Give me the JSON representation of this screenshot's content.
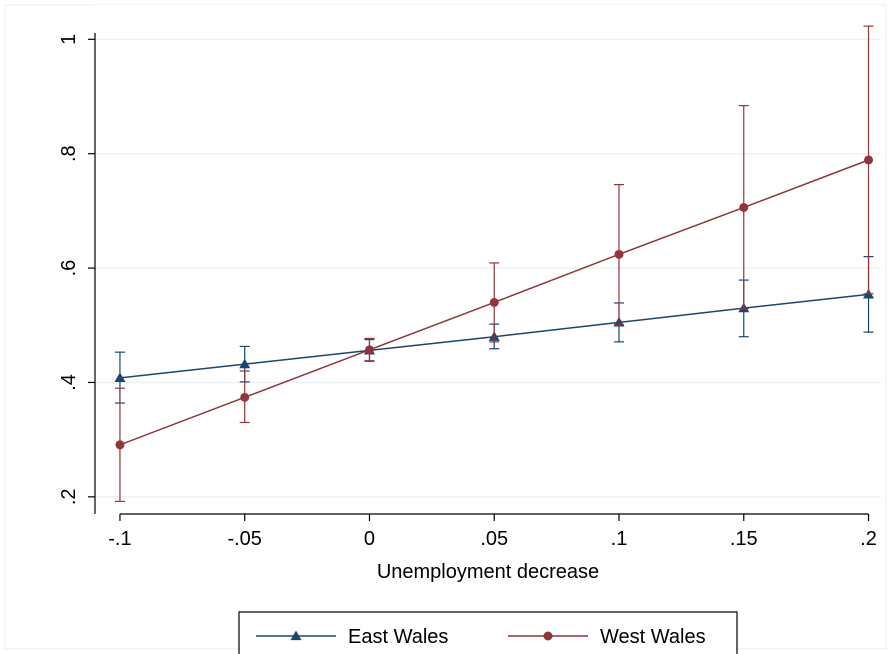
{
  "chart_data": {
    "type": "line",
    "title": "",
    "xlabel": "Unemployment decrease",
    "ylabel": "",
    "x": [
      -0.1,
      -0.05,
      0,
      0.05,
      0.1,
      0.15,
      0.2
    ],
    "x_tick_values": [
      -0.1,
      -0.05,
      0,
      0.05,
      0.1,
      0.15,
      0.2
    ],
    "x_tick_labels": [
      "-.1",
      "-.05",
      "0",
      ".05",
      ".1",
      ".15",
      ".2"
    ],
    "y_tick_values": [
      0.2,
      0.4,
      0.6,
      0.8,
      1.0
    ],
    "y_tick_labels": [
      ".2",
      ".4",
      ".6",
      ".8",
      "1"
    ],
    "xlim": [
      -0.11,
      0.205
    ],
    "ylim": [
      0.17,
      1.06
    ],
    "grid": "horizontal",
    "legend_position": "bottom",
    "series": [
      {
        "name": "East Wales",
        "color": "#1a476f",
        "marker": "triangle",
        "values": [
          0.408,
          0.432,
          0.456,
          0.48,
          0.505,
          0.53,
          0.554
        ],
        "ci_low": [
          0.364,
          0.401,
          0.437,
          0.459,
          0.471,
          0.48,
          0.488
        ],
        "ci_high": [
          0.453,
          0.463,
          0.475,
          0.502,
          0.539,
          0.579,
          0.62
        ]
      },
      {
        "name": "West Wales",
        "color": "#90353b",
        "marker": "circle",
        "values": [
          0.291,
          0.374,
          0.457,
          0.54,
          0.624,
          0.706,
          0.789
        ],
        "ci_low": [
          0.192,
          0.33,
          0.438,
          0.471,
          0.501,
          0.529,
          0.555
        ],
        "ci_high": [
          0.39,
          0.42,
          0.477,
          0.609,
          0.746,
          0.884,
          1.023
        ]
      }
    ]
  }
}
